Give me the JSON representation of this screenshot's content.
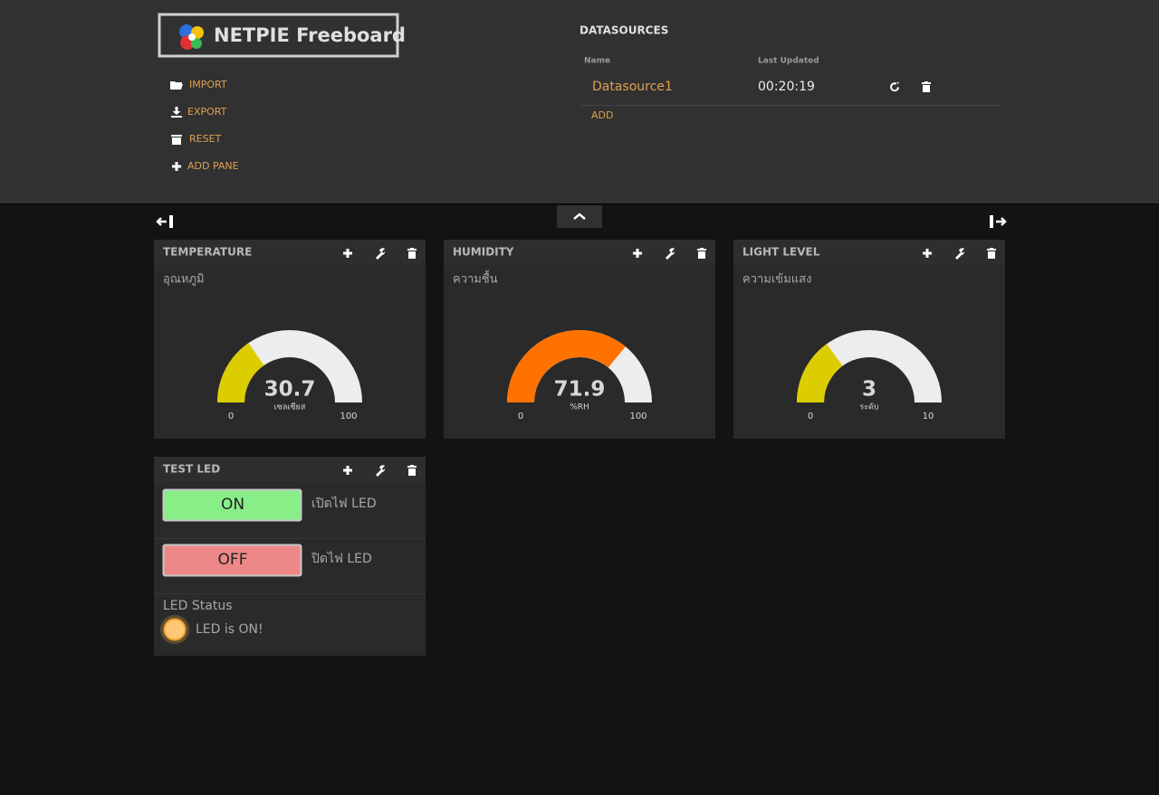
{
  "header": {
    "logo": "NETPIE Freeboard",
    "menu": [
      "IMPORT",
      "EXPORT",
      "RESET",
      "ADD PANE"
    ]
  },
  "datasources": {
    "title": "DATASOURCES",
    "columns": [
      "Name",
      "Last Updated"
    ],
    "rows": [
      [
        "Datasource1",
        "00:20:19"
      ]
    ],
    "add": "ADD"
  },
  "panes": [
    {
      "title": "TEMPERATURE",
      "label": "อุณหภูมิ",
      "value": 30.7,
      "units": "เซลเซียส",
      "min": 0,
      "max": 100,
      "color": "#dccd00"
    },
    {
      "title": "HUMIDITY",
      "label": "ความชื้น",
      "value": 71.9,
      "units": "%RH",
      "min": 0,
      "max": 100,
      "color": "#ff7200"
    },
    {
      "title": "LIGHT LEVEL",
      "label": "ความเข้มแสง",
      "value": 3,
      "units": "ระดับ",
      "min": 0,
      "max": 10,
      "color": "#dccd00"
    }
  ],
  "led_pane": {
    "title": "TEST LED",
    "buttons": [
      {
        "label": "ON",
        "caption": "เปิดไฟ LED",
        "color": "#88ee88"
      },
      {
        "label": "OFF",
        "caption": "ปิดไฟ LED",
        "color": "#ee8888"
      }
    ],
    "status_title": "LED Status",
    "status_text": "LED is ON!"
  }
}
